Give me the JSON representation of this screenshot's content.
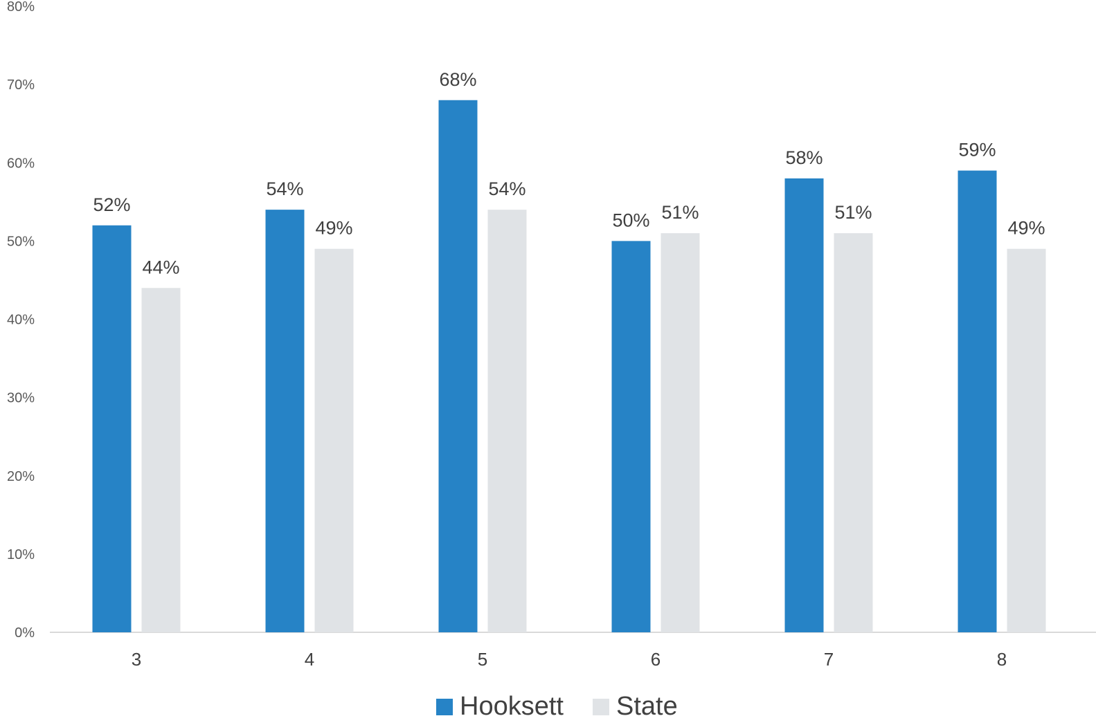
{
  "chart_data": {
    "type": "bar",
    "title": "",
    "xlabel": "",
    "ylabel": "",
    "categories": [
      "3",
      "4",
      "5",
      "6",
      "7",
      "8"
    ],
    "series": [
      {
        "name": "Hooksett",
        "color": "#2683C6",
        "values": [
          52,
          54,
          68,
          50,
          58,
          59
        ],
        "labels": [
          "52%",
          "54%",
          "68%",
          "50%",
          "58%",
          "59%"
        ]
      },
      {
        "name": "State",
        "color": "#E0E3E6",
        "values": [
          44,
          49,
          54,
          51,
          51,
          49
        ],
        "labels": [
          "44%",
          "49%",
          "54%",
          "51%",
          "51%",
          "49%"
        ]
      }
    ],
    "ylim": [
      0,
      80
    ],
    "yticks": [
      0,
      10,
      20,
      30,
      40,
      50,
      60,
      70,
      80
    ],
    "ytick_labels": [
      "0%",
      "10%",
      "20%",
      "30%",
      "40%",
      "50%",
      "60%",
      "70%",
      "80%"
    ],
    "grid": false,
    "legend": "bottom-center"
  }
}
